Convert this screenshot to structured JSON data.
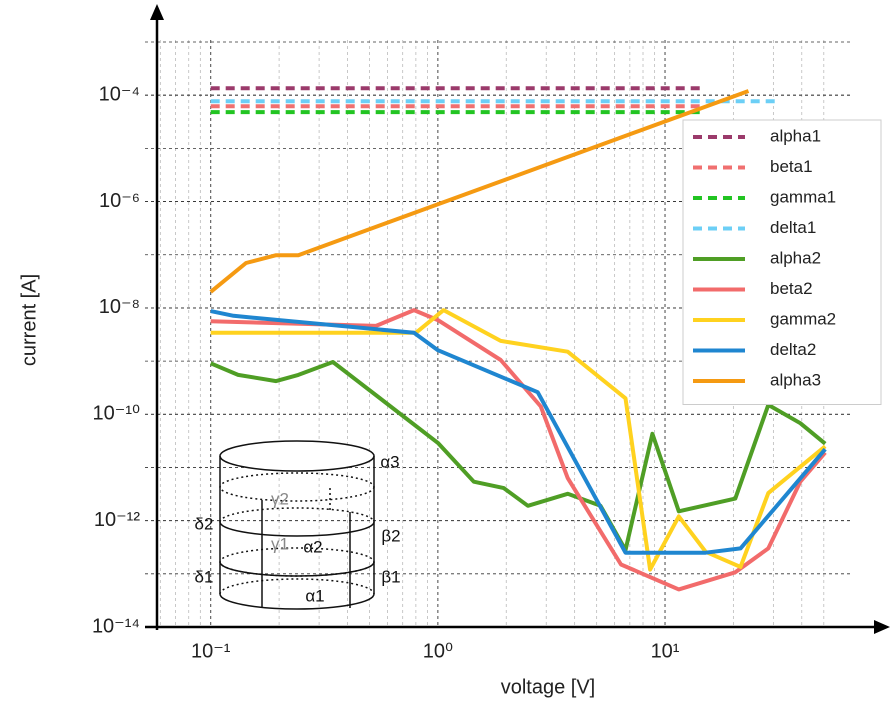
{
  "chart_data": {
    "type": "line",
    "xlabel": "voltage [V]",
    "ylabel": "current [A]",
    "xscale": "log",
    "yscale": "log",
    "grid": true,
    "legend": "upper right",
    "xlim": [
      0.058,
      93
    ],
    "ylim": [
      1e-14,
      0.004
    ],
    "xticks": [
      {
        "value": 0.1,
        "label": "10⁻¹"
      },
      {
        "value": 1,
        "label": "10⁰"
      },
      {
        "value": 10,
        "label": "10¹"
      }
    ],
    "yticks": [
      {
        "value": 1e-14,
        "label": "10⁻¹⁴"
      },
      {
        "value": 1e-12,
        "label": "10⁻¹²"
      },
      {
        "value": 1e-10,
        "label": "10⁻¹⁰"
      },
      {
        "value": 1e-08,
        "label": "10⁻⁸"
      },
      {
        "value": 1e-06,
        "label": "10⁻⁶"
      },
      {
        "value": 0.0001,
        "label": "10⁻⁴"
      }
    ],
    "series": [
      {
        "name": "alpha1",
        "color": "#9b3a6b",
        "linestyle": "dashed",
        "x": [
          0.1,
          15
        ],
        "values": [
          0.000135,
          0.000135
        ]
      },
      {
        "name": "beta1",
        "color": "#f07070",
        "linestyle": "dashed",
        "x": [
          0.1,
          15
        ],
        "values": [
          6.2e-05,
          6.2e-05
        ]
      },
      {
        "name": "gamma1",
        "color": "#22c422",
        "linestyle": "dashed",
        "x": [
          0.1,
          15
        ],
        "values": [
          4.8e-05,
          4.8e-05
        ]
      },
      {
        "name": "delta1",
        "color": "#6ccff6",
        "linestyle": "dashed",
        "x": [
          0.1,
          32
        ],
        "values": [
          7.7e-05,
          7.7e-05
        ]
      },
      {
        "name": "alpha2",
        "color": "#4f9e25",
        "linestyle": "solid",
        "x": [
          0.1,
          0.132,
          0.194,
          0.243,
          0.345,
          1,
          1.44,
          1.95,
          2.49,
          3.73,
          5.2,
          6.7,
          8.8,
          11.5,
          20.4,
          28.5,
          39.4,
          50.7
        ],
        "values": [
          9.1e-10,
          5.5e-10,
          4.2e-10,
          5.5e-10,
          9.6e-10,
          2.9e-11,
          5.4e-12,
          4.1e-12,
          1.9e-12,
          3.2e-12,
          1.9e-12,
          2.8e-13,
          4.3e-11,
          1.5e-12,
          2.6e-12,
          1.5e-10,
          6.8e-11,
          2.8e-11
        ]
      },
      {
        "name": "beta2",
        "color": "#f26b6b",
        "linestyle": "solid",
        "x": [
          0.1,
          0.534,
          0.785,
          1,
          1.89,
          2.84,
          3.73,
          6.4,
          11.5,
          20.4,
          28.5,
          39.4,
          50.7
        ],
        "values": [
          5.6e-09,
          4.6e-09,
          9.1e-09,
          5.9e-09,
          1.05e-09,
          1.4e-10,
          6.3e-12,
          1.5e-13,
          5.1e-14,
          1.07e-13,
          3e-13,
          5.4e-12,
          1.9e-11
        ]
      },
      {
        "name": "gamma2",
        "color": "#ffd21f",
        "linestyle": "solid",
        "x": [
          0.1,
          0.8,
          1.06,
          1.89,
          3.73,
          6.7,
          8.6,
          11.5,
          15.1,
          21.5,
          28.5,
          50.7
        ],
        "values": [
          3.4e-09,
          3.4e-09,
          9.1e-09,
          2.4e-09,
          1.5e-09,
          2e-10,
          1.2e-13,
          1.2e-12,
          2.6e-13,
          1.35e-13,
          3.3e-12,
          2.5e-11
        ]
      },
      {
        "name": "delta2",
        "color": "#1f86d0",
        "linestyle": "solid",
        "x": [
          0.1,
          0.126,
          0.785,
          1,
          2.75,
          6.7,
          15.1,
          21.5,
          50.7
        ],
        "values": [
          8.7e-09,
          7.1e-09,
          3.4e-09,
          1.6e-09,
          2.6e-10,
          2.5e-13,
          2.5e-13,
          3e-13,
          2.2e-11
        ]
      },
      {
        "name": "alpha3",
        "color": "#f59a12",
        "linestyle": "solid",
        "x": [
          0.1,
          0.143,
          0.194,
          0.243,
          23.3
        ],
        "values": [
          2e-08,
          7e-08,
          9.8e-08,
          9.8e-08,
          0.00012
        ]
      }
    ],
    "annotations": [
      "γ2",
      "γ1",
      "α2",
      "α3",
      "β2",
      "δ2",
      "δ1",
      "β1",
      "α1"
    ]
  }
}
